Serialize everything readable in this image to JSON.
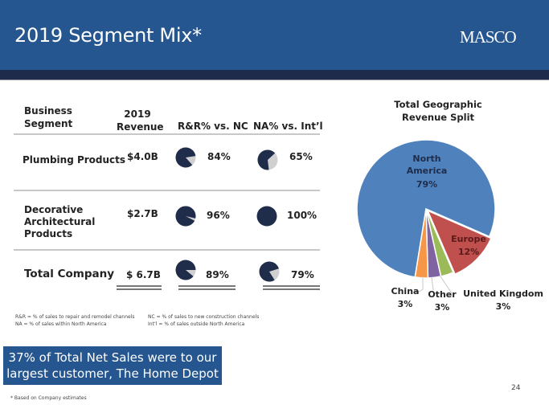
{
  "header": {
    "title": "2019 Segment Mix*",
    "logo": "MASCO"
  },
  "colors": {
    "brand_blue": "#25568f",
    "header_dark": "#1e2b4a",
    "pie_dark": "#1f2d4b",
    "pie_light": "#d0d0d0"
  },
  "table": {
    "headers": {
      "segment": [
        "Business",
        "Segment"
      ],
      "revenue": [
        "2019",
        "Revenue"
      ],
      "rr": "R&R% vs. NC",
      "na": "NA% vs. Int’l"
    },
    "rows": [
      {
        "segment": [
          "Plumbing Products"
        ],
        "revenue": "$4.0B",
        "rr_pct": 84,
        "rr_label": "84%",
        "na_pct": 65,
        "na_label": "65%"
      },
      {
        "segment": [
          "Decorative",
          "Architectural",
          "Products"
        ],
        "revenue": "$2.7B",
        "rr_pct": 96,
        "rr_label": "96%",
        "na_pct": 100,
        "na_label": "100%"
      },
      {
        "segment": [
          "Total Company"
        ],
        "revenue": "$ 6.7B",
        "rr_pct": 89,
        "rr_label": "89%",
        "na_pct": 79,
        "na_label": "79%"
      }
    ]
  },
  "notes": {
    "rr": "R&R = % of sales to repair and remodel channels",
    "na": "NA = % of sales within North America",
    "nc": "NC = % of sales to new construction channels",
    "intl": "Int’l = % of sales outside North America"
  },
  "callout": [
    "37% of Total Net Sales were to our",
    "largest customer, The Home Depot"
  ],
  "footnote": "* Based on Company estimates",
  "page_number": "24",
  "chart_data": {
    "type": "pie",
    "title": "Total Geographic Revenue Split",
    "title_lines": [
      "Total Geographic",
      "Revenue Split"
    ],
    "slices": [
      {
        "name": "North America",
        "label_lines": [
          "North",
          "America"
        ],
        "value": 79,
        "label": "79%",
        "color": "#4f81bd"
      },
      {
        "name": "Europe",
        "label_lines": [
          "Europe"
        ],
        "value": 12,
        "label": "12%",
        "color": "#c0504d"
      },
      {
        "name": "United Kingdom",
        "label_lines": [
          "United Kingdom"
        ],
        "value": 3,
        "label": "3%",
        "color": "#9bbb59"
      },
      {
        "name": "Other",
        "label_lines": [
          "Other"
        ],
        "value": 3,
        "label": "3%",
        "color": "#8064a2"
      },
      {
        "name": "China",
        "label_lines": [
          "China"
        ],
        "value": 3,
        "label": "3%",
        "color": "#f79646"
      }
    ]
  }
}
